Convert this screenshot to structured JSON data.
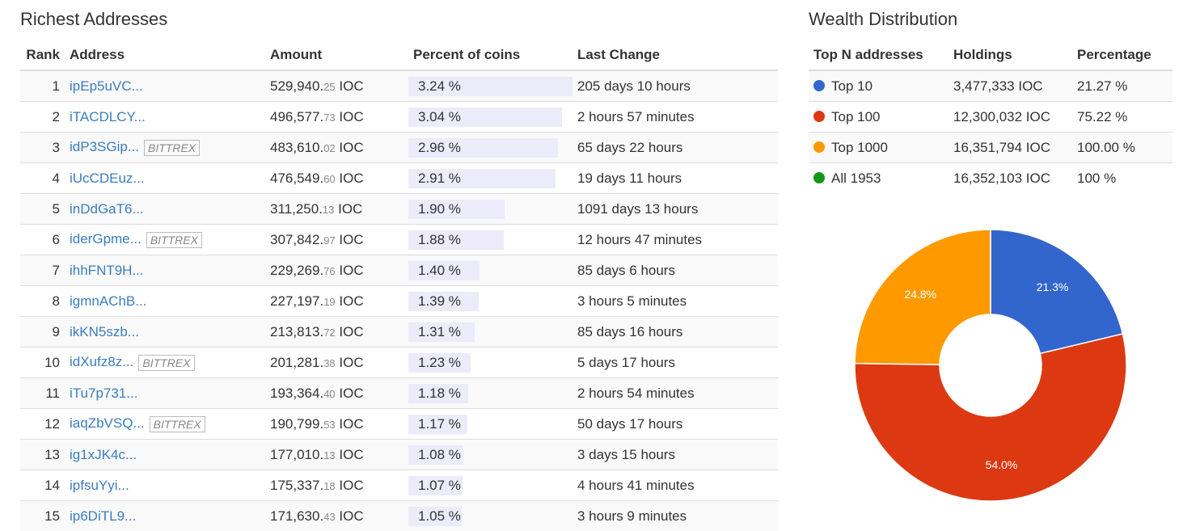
{
  "left_title": "Richest Addresses",
  "right_title": "Wealth Distribution",
  "rich_headers": {
    "rank": "Rank",
    "address": "Address",
    "amount": "Amount",
    "percent": "Percent of coins",
    "last_change": "Last Change"
  },
  "rich_rows": [
    {
      "rank": "1",
      "address": "ipEp5uVC...",
      "badge": "",
      "amount_int": "529,940.",
      "amount_dec": "25",
      "unit": " IOC",
      "percent_text": "3.24 %",
      "percent": 3.24,
      "last_change": "205 days 10 hours"
    },
    {
      "rank": "2",
      "address": "iTACDLCY...",
      "badge": "",
      "amount_int": "496,577.",
      "amount_dec": "73",
      "unit": " IOC",
      "percent_text": "3.04 %",
      "percent": 3.04,
      "last_change": "2 hours 57 minutes"
    },
    {
      "rank": "3",
      "address": "idP3SGip...",
      "badge": "BITTREX",
      "amount_int": "483,610.",
      "amount_dec": "02",
      "unit": " IOC",
      "percent_text": "2.96 %",
      "percent": 2.96,
      "last_change": "65 days 22 hours"
    },
    {
      "rank": "4",
      "address": "iUcCDEuz...",
      "badge": "",
      "amount_int": "476,549.",
      "amount_dec": "60",
      "unit": " IOC",
      "percent_text": "2.91 %",
      "percent": 2.91,
      "last_change": "19 days 11 hours"
    },
    {
      "rank": "5",
      "address": "inDdGaT6...",
      "badge": "",
      "amount_int": "311,250.",
      "amount_dec": "13",
      "unit": " IOC",
      "percent_text": "1.90 %",
      "percent": 1.9,
      "last_change": "1091 days 13 hours"
    },
    {
      "rank": "6",
      "address": "iderGpme...",
      "badge": "BITTREX",
      "amount_int": "307,842.",
      "amount_dec": "97",
      "unit": " IOC",
      "percent_text": "1.88 %",
      "percent": 1.88,
      "last_change": "12 hours 47 minutes"
    },
    {
      "rank": "7",
      "address": "ihhFNT9H...",
      "badge": "",
      "amount_int": "229,269.",
      "amount_dec": "76",
      "unit": " IOC",
      "percent_text": "1.40 %",
      "percent": 1.4,
      "last_change": "85 days 6 hours"
    },
    {
      "rank": "8",
      "address": "igmnAChB...",
      "badge": "",
      "amount_int": "227,197.",
      "amount_dec": "19",
      "unit": " IOC",
      "percent_text": "1.39 %",
      "percent": 1.39,
      "last_change": "3 hours 5 minutes"
    },
    {
      "rank": "9",
      "address": "ikKN5szb...",
      "badge": "",
      "amount_int": "213,813.",
      "amount_dec": "72",
      "unit": " IOC",
      "percent_text": "1.31 %",
      "percent": 1.31,
      "last_change": "85 days 16 hours"
    },
    {
      "rank": "10",
      "address": "idXufz8z...",
      "badge": "BITTREX",
      "amount_int": "201,281.",
      "amount_dec": "38",
      "unit": " IOC",
      "percent_text": "1.23 %",
      "percent": 1.23,
      "last_change": "5 days 17 hours"
    },
    {
      "rank": "11",
      "address": "iTu7p731...",
      "badge": "",
      "amount_int": "193,364.",
      "amount_dec": "40",
      "unit": " IOC",
      "percent_text": "1.18 %",
      "percent": 1.18,
      "last_change": "2 hours 54 minutes"
    },
    {
      "rank": "12",
      "address": "iaqZbVSQ...",
      "badge": "BITTREX",
      "amount_int": "190,799.",
      "amount_dec": "53",
      "unit": " IOC",
      "percent_text": "1.17 %",
      "percent": 1.17,
      "last_change": "50 days 17 hours"
    },
    {
      "rank": "13",
      "address": "ig1xJK4c...",
      "badge": "",
      "amount_int": "177,010.",
      "amount_dec": "13",
      "unit": " IOC",
      "percent_text": "1.08 %",
      "percent": 1.08,
      "last_change": "3 days 15 hours"
    },
    {
      "rank": "14",
      "address": "ipfsuYyi...",
      "badge": "",
      "amount_int": "175,337.",
      "amount_dec": "18",
      "unit": " IOC",
      "percent_text": "1.07 %",
      "percent": 1.07,
      "last_change": "4 hours 41 minutes"
    },
    {
      "rank": "15",
      "address": "ip6DiTL9...",
      "badge": "",
      "amount_int": "171,630.",
      "amount_dec": "43",
      "unit": " IOC",
      "percent_text": "1.05 %",
      "percent": 1.05,
      "last_change": "3 hours 9 minutes"
    }
  ],
  "dist_headers": {
    "name": "Top N addresses",
    "holdings": "Holdings",
    "percentage": "Percentage"
  },
  "dist_rows": [
    {
      "name": "Top 10",
      "holdings": "3,477,333 IOC",
      "percentage": "21.27 %",
      "color": "#3366cc"
    },
    {
      "name": "Top 100",
      "holdings": "12,300,032 IOC",
      "percentage": "75.22 %",
      "color": "#dc3912"
    },
    {
      "name": "Top 1000",
      "holdings": "16,351,794 IOC",
      "percentage": "100.00 %",
      "color": "#ff9900"
    },
    {
      "name": "All 1953",
      "holdings": "16,352,103 IOC",
      "percentage": "100 %",
      "color": "#109618"
    }
  ],
  "chart_data": {
    "type": "pie",
    "donut": true,
    "categories": [
      "Top 10",
      "Top 100",
      "Top 1000"
    ],
    "values": [
      21.3,
      54.0,
      24.8
    ],
    "labels": [
      "21.3%",
      "54.0%",
      "24.8%"
    ],
    "colors": [
      "#3366cc",
      "#dc3912",
      "#ff9900"
    ]
  }
}
